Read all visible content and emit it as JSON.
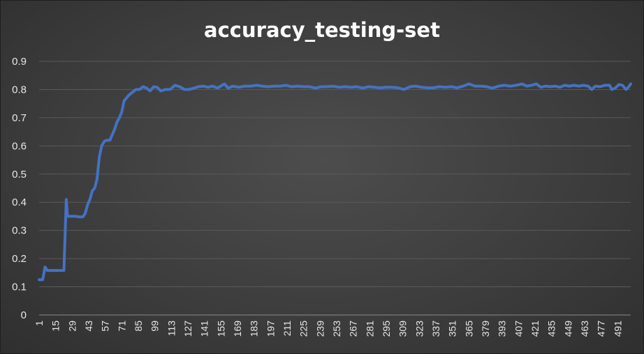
{
  "chart_data": {
    "type": "line",
    "title": "accuracy_testing-set",
    "xlabel": "",
    "ylabel": "",
    "ylim": [
      0,
      0.9
    ],
    "xlim": [
      1,
      502
    ],
    "y_ticks": [
      "0",
      "0.1",
      "0.2",
      "0.3",
      "0.4",
      "0.5",
      "0.6",
      "0.7",
      "0.8",
      "0.9"
    ],
    "x_ticks": [
      "1",
      "15",
      "29",
      "43",
      "57",
      "71",
      "85",
      "99",
      "113",
      "127",
      "141",
      "155",
      "169",
      "183",
      "197",
      "211",
      "225",
      "239",
      "253",
      "267",
      "281",
      "295",
      "309",
      "323",
      "337",
      "351",
      "365",
      "379",
      "393",
      "407",
      "421",
      "435",
      "449",
      "463",
      "477",
      "491"
    ],
    "grid": true,
    "legend": "none",
    "line_color": "#4472c4",
    "series": [
      {
        "points": [
          [
            1,
            0.125
          ],
          [
            4,
            0.125
          ],
          [
            6,
            0.17
          ],
          [
            8,
            0.158
          ],
          [
            12,
            0.158
          ],
          [
            16,
            0.158
          ],
          [
            20,
            0.158
          ],
          [
            22,
            0.158
          ],
          [
            24,
            0.41
          ],
          [
            25,
            0.35
          ],
          [
            28,
            0.35
          ],
          [
            32,
            0.35
          ],
          [
            35,
            0.348
          ],
          [
            38,
            0.348
          ],
          [
            40,
            0.36
          ],
          [
            42,
            0.39
          ],
          [
            44,
            0.41
          ],
          [
            46,
            0.44
          ],
          [
            48,
            0.45
          ],
          [
            50,
            0.48
          ],
          [
            52,
            0.56
          ],
          [
            54,
            0.6
          ],
          [
            56,
            0.615
          ],
          [
            58,
            0.62
          ],
          [
            61,
            0.62
          ],
          [
            63,
            0.64
          ],
          [
            65,
            0.66
          ],
          [
            67,
            0.685
          ],
          [
            69,
            0.7
          ],
          [
            71,
            0.72
          ],
          [
            73,
            0.76
          ],
          [
            75,
            0.77
          ],
          [
            77,
            0.78
          ],
          [
            80,
            0.79
          ],
          [
            83,
            0.8
          ],
          [
            86,
            0.8
          ],
          [
            89,
            0.81
          ],
          [
            92,
            0.805
          ],
          [
            95,
            0.795
          ],
          [
            98,
            0.81
          ],
          [
            101,
            0.808
          ],
          [
            104,
            0.795
          ],
          [
            108,
            0.8
          ],
          [
            112,
            0.8
          ],
          [
            116,
            0.815
          ],
          [
            120,
            0.81
          ],
          [
            124,
            0.8
          ],
          [
            128,
            0.8
          ],
          [
            132,
            0.805
          ],
          [
            136,
            0.81
          ],
          [
            140,
            0.812
          ],
          [
            144,
            0.808
          ],
          [
            148,
            0.812
          ],
          [
            152,
            0.805
          ],
          [
            156,
            0.815
          ],
          [
            158,
            0.82
          ],
          [
            161,
            0.805
          ],
          [
            165,
            0.812
          ],
          [
            170,
            0.808
          ],
          [
            175,
            0.812
          ],
          [
            180,
            0.812
          ],
          [
            185,
            0.815
          ],
          [
            190,
            0.812
          ],
          [
            195,
            0.81
          ],
          [
            200,
            0.812
          ],
          [
            205,
            0.812
          ],
          [
            210,
            0.815
          ],
          [
            215,
            0.81
          ],
          [
            220,
            0.812
          ],
          [
            225,
            0.81
          ],
          [
            230,
            0.81
          ],
          [
            235,
            0.805
          ],
          [
            240,
            0.81
          ],
          [
            245,
            0.81
          ],
          [
            250,
            0.812
          ],
          [
            255,
            0.808
          ],
          [
            260,
            0.81
          ],
          [
            265,
            0.808
          ],
          [
            270,
            0.81
          ],
          [
            275,
            0.805
          ],
          [
            280,
            0.81
          ],
          [
            285,
            0.808
          ],
          [
            290,
            0.806
          ],
          [
            295,
            0.808
          ],
          [
            300,
            0.808
          ],
          [
            305,
            0.806
          ],
          [
            310,
            0.8
          ],
          [
            315,
            0.81
          ],
          [
            320,
            0.812
          ],
          [
            325,
            0.808
          ],
          [
            330,
            0.806
          ],
          [
            335,
            0.806
          ],
          [
            340,
            0.81
          ],
          [
            345,
            0.808
          ],
          [
            350,
            0.81
          ],
          [
            355,
            0.806
          ],
          [
            360,
            0.812
          ],
          [
            365,
            0.82
          ],
          [
            370,
            0.812
          ],
          [
            375,
            0.812
          ],
          [
            380,
            0.81
          ],
          [
            385,
            0.805
          ],
          [
            390,
            0.812
          ],
          [
            395,
            0.815
          ],
          [
            400,
            0.812
          ],
          [
            405,
            0.815
          ],
          [
            410,
            0.82
          ],
          [
            414,
            0.812
          ],
          [
            418,
            0.815
          ],
          [
            422,
            0.82
          ],
          [
            426,
            0.808
          ],
          [
            430,
            0.812
          ],
          [
            434,
            0.81
          ],
          [
            438,
            0.812
          ],
          [
            442,
            0.808
          ],
          [
            446,
            0.815
          ],
          [
            450,
            0.812
          ],
          [
            454,
            0.815
          ],
          [
            458,
            0.812
          ],
          [
            462,
            0.815
          ],
          [
            466,
            0.812
          ],
          [
            469,
            0.8
          ],
          [
            472,
            0.812
          ],
          [
            476,
            0.81
          ],
          [
            480,
            0.815
          ],
          [
            484,
            0.815
          ],
          [
            486,
            0.8
          ],
          [
            489,
            0.805
          ],
          [
            492,
            0.818
          ],
          [
            495,
            0.815
          ],
          [
            498,
            0.8
          ],
          [
            500,
            0.808
          ],
          [
            502,
            0.82
          ]
        ]
      }
    ]
  }
}
